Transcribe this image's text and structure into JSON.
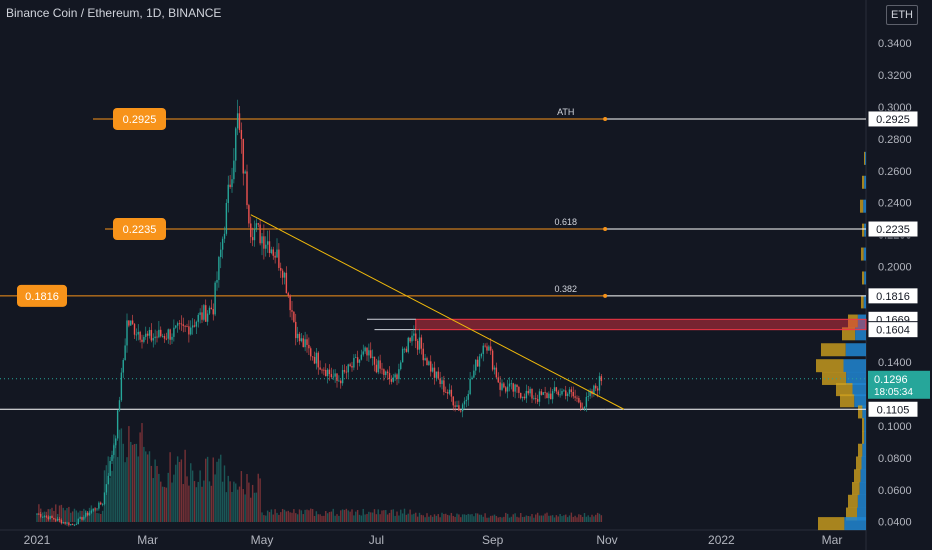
{
  "header": {
    "title": "Binance Coin / Ethereum, 1D, BINANCE",
    "currency": "ETH"
  },
  "chart_data": {
    "type": "candlestick",
    "x_ticks": [
      "2021",
      "Mar",
      "May",
      "Jul",
      "Sep",
      "Nov",
      "2022",
      "Mar"
    ],
    "y_ticks": [
      "0.3400",
      "0.3200",
      "0.3000",
      "0.2800",
      "0.2600",
      "0.2400",
      "0.2200",
      "0.2000",
      "0.1800",
      "0.1600",
      "0.1400",
      "0.1200",
      "0.1000",
      "0.0800",
      "0.0600",
      "0.0400"
    ],
    "ylim": [
      0.04,
      0.345
    ],
    "grid": false,
    "series": [
      {
        "name": "price",
        "key_points": [
          {
            "x": "2021-01-01",
            "y": 0.045
          },
          {
            "x": "2021-01-20",
            "y": 0.038
          },
          {
            "x": "2021-02-05",
            "y": 0.052
          },
          {
            "x": "2021-02-12",
            "y": 0.095
          },
          {
            "x": "2021-02-18",
            "y": 0.165
          },
          {
            "x": "2021-03-01",
            "y": 0.155
          },
          {
            "x": "2021-03-20",
            "y": 0.16
          },
          {
            "x": "2021-04-05",
            "y": 0.175
          },
          {
            "x": "2021-04-12",
            "y": 0.235
          },
          {
            "x": "2021-04-18",
            "y": 0.292
          },
          {
            "x": "2021-04-25",
            "y": 0.225
          },
          {
            "x": "2021-05-05",
            "y": 0.215
          },
          {
            "x": "2021-05-12",
            "y": 0.2
          },
          {
            "x": "2021-05-20",
            "y": 0.155
          },
          {
            "x": "2021-06-10",
            "y": 0.128
          },
          {
            "x": "2021-06-25",
            "y": 0.145
          },
          {
            "x": "2021-07-10",
            "y": 0.127
          },
          {
            "x": "2021-07-20",
            "y": 0.16
          },
          {
            "x": "2021-08-01",
            "y": 0.132
          },
          {
            "x": "2021-08-15",
            "y": 0.11
          },
          {
            "x": "2021-08-28",
            "y": 0.155
          },
          {
            "x": "2021-09-05",
            "y": 0.125
          },
          {
            "x": "2021-09-25",
            "y": 0.118
          },
          {
            "x": "2021-10-10",
            "y": 0.122
          },
          {
            "x": "2021-10-20",
            "y": 0.113
          },
          {
            "x": "2021-10-29",
            "y": 0.1296
          }
        ]
      }
    ],
    "levels": [
      {
        "price": "0.2925",
        "label": "ATH"
      },
      {
        "price": "0.2235",
        "label": "0.618"
      },
      {
        "price": "0.1816",
        "label": "0.382"
      },
      {
        "price": "0.1105",
        "label": ""
      }
    ],
    "left_tags": [
      "0.2925",
      "0.2235",
      "0.1816"
    ],
    "zone": {
      "top": "0.1669",
      "bottom": "0.1604"
    },
    "current_price": {
      "value": "0.1296",
      "countdown": "18:05:34"
    },
    "right_tags": [
      "0.2925",
      "0.2235",
      "0.1816",
      "0.1669",
      "0.1604",
      "0.1105"
    ],
    "colors": {
      "up": "#26a69a",
      "down": "#ef5350",
      "trendline": "#f0b90b",
      "level": "#f7931a",
      "label_bg": "#f7931a",
      "current": "#26a69a"
    }
  }
}
